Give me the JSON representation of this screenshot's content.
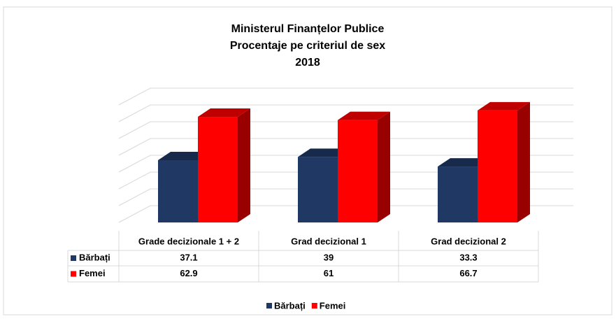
{
  "chart_data": {
    "type": "bar3d",
    "title": [
      "Ministerul Finanțelor Publice",
      "Procentaje pe criteriul de sex",
      "2018"
    ],
    "categories": [
      "Grade decizionale 1 + 2",
      "Grad decizional 1",
      "Grad decizional 2"
    ],
    "series": [
      {
        "name": "Bărbați",
        "color": "#1f3864",
        "values": [
          37.1,
          39,
          33.3
        ]
      },
      {
        "name": "Femei",
        "color": "#ff0000",
        "values": [
          62.9,
          61,
          66.7
        ]
      }
    ],
    "ylim": [
      0,
      70
    ],
    "yticks": [
      0,
      10,
      20,
      30,
      40,
      50,
      60,
      70
    ],
    "grid": true,
    "legend": "bottom"
  }
}
